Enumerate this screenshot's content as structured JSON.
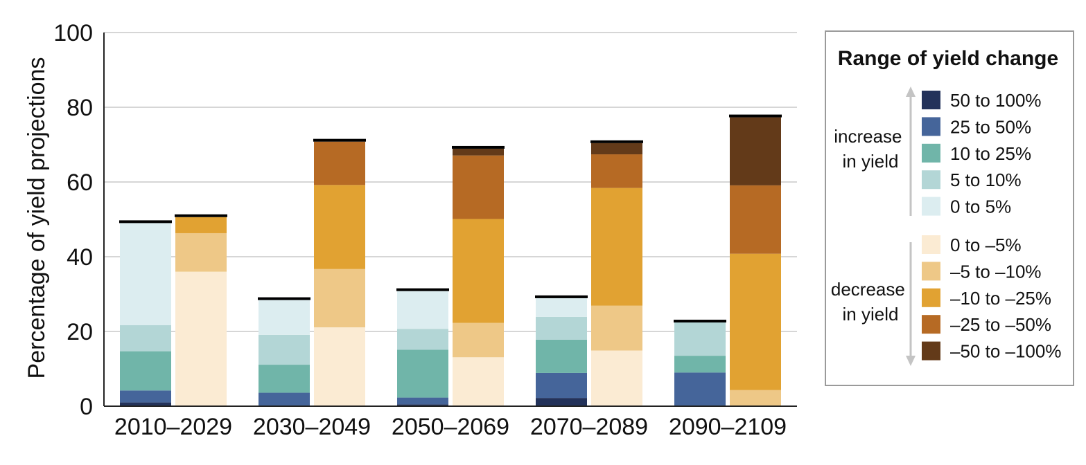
{
  "chart_data": {
    "type": "bar",
    "stacked": true,
    "ylabel": "Percentage of yield projections",
    "ylim": [
      0,
      100
    ],
    "yticks": [
      0,
      20,
      40,
      60,
      80,
      100
    ],
    "grid": true,
    "legend_position": "right",
    "categories": [
      "2010–2029",
      "2030–2049",
      "2050–2069",
      "2070–2089",
      "2090–2109"
    ],
    "legend": {
      "title": "Range of yield change",
      "increase_label": [
        "increase",
        "in yield"
      ],
      "decrease_label": [
        "decrease",
        "in yield"
      ]
    },
    "increase_series": [
      {
        "name": "50 to 100%",
        "color": "#23325a",
        "values": [
          1.0,
          0,
          0.5,
          2.2,
          0
        ]
      },
      {
        "name": "25 to 50%",
        "color": "#45659a",
        "values": [
          3.2,
          3.6,
          1.8,
          6.7,
          9.0
        ]
      },
      {
        "name": "10 to 25%",
        "color": "#70b5a9",
        "values": [
          10.5,
          7.5,
          12.8,
          8.9,
          4.5
        ]
      },
      {
        "name": "5 to 10%",
        "color": "#b3d6d6",
        "values": [
          7.0,
          8.0,
          5.6,
          6.1,
          8.9
        ]
      },
      {
        "name": "0 to 5%",
        "color": "#dcedf0",
        "values": [
          27.3,
          9.3,
          10.1,
          5.0,
          0
        ]
      }
    ],
    "decrease_series": [
      {
        "name": "0 to –5%",
        "color": "#fbebd3",
        "values": [
          36.0,
          21.1,
          13.1,
          14.9,
          0
        ]
      },
      {
        "name": "–5 to –10%",
        "color": "#eec887",
        "values": [
          10.3,
          15.6,
          9.2,
          12.0,
          4.3
        ]
      },
      {
        "name": "–10 to –25%",
        "color": "#e1a232",
        "values": [
          4.3,
          22.5,
          27.8,
          31.5,
          36.5
        ]
      },
      {
        "name": "–25 to –50%",
        "color": "#b66a24",
        "values": [
          0,
          11.6,
          17.0,
          9.0,
          18.3
        ]
      },
      {
        "name": "–50 to –100%",
        "color": "#633a19",
        "values": [
          0,
          0,
          1.8,
          3.0,
          18.2
        ]
      }
    ]
  }
}
